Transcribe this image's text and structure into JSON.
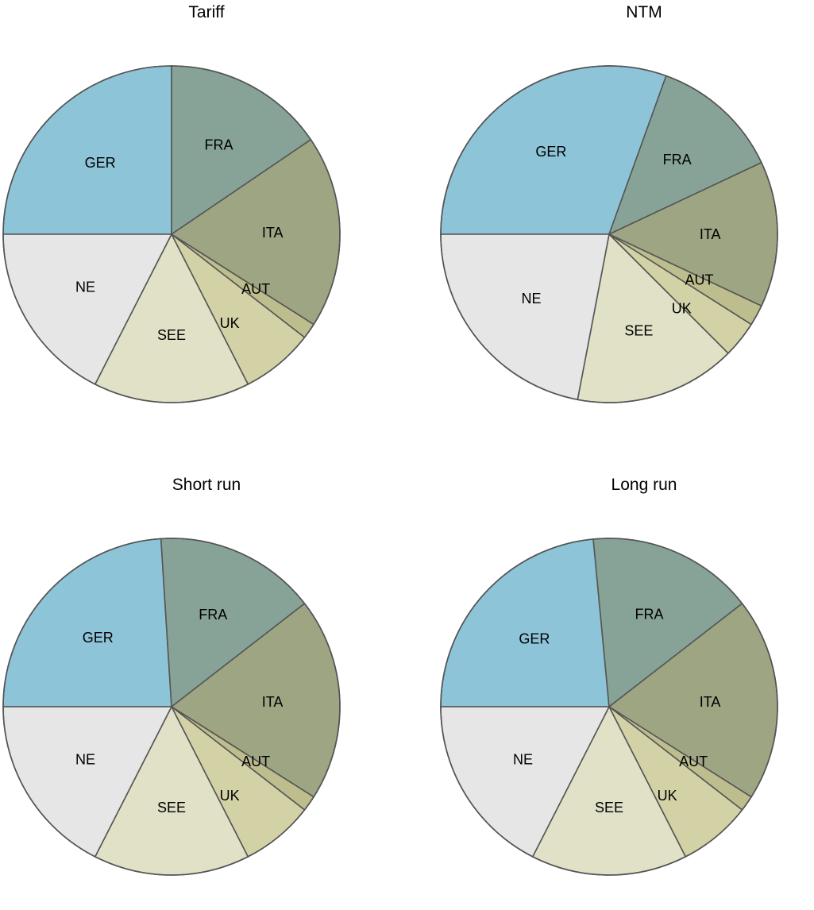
{
  "chart_data": [
    {
      "type": "pie",
      "title": "Tariff",
      "labels": [
        "GER",
        "FRA",
        "ITA",
        "AUT",
        "UK",
        "SEE",
        "NE"
      ],
      "values": [
        25.0,
        15.5,
        18.5,
        1.5,
        7.0,
        15.0,
        17.5
      ]
    },
    {
      "type": "pie",
      "title": "NTM",
      "labels": [
        "GER",
        "FRA",
        "ITA",
        "AUT",
        "UK",
        "SEE",
        "NE"
      ],
      "values": [
        30.5,
        12.5,
        14.0,
        2.0,
        3.5,
        15.5,
        22.0
      ]
    },
    {
      "type": "pie",
      "title": "Short run",
      "labels": [
        "GER",
        "FRA",
        "ITA",
        "AUT",
        "UK",
        "SEE",
        "NE"
      ],
      "values": [
        24.0,
        15.5,
        19.5,
        1.5,
        7.0,
        15.0,
        17.5
      ]
    },
    {
      "type": "pie",
      "title": "Long run",
      "labels": [
        "GER",
        "FRA",
        "ITA",
        "AUT",
        "UK",
        "SEE",
        "NE"
      ],
      "values": [
        23.5,
        16.0,
        19.5,
        1.5,
        7.0,
        15.0,
        17.5
      ]
    }
  ],
  "colors": {
    "GER": "#8ec4d8",
    "FRA": "#87a398",
    "ITA": "#9ea583",
    "AUT": "#bdbd8e",
    "UK": "#d3d2a7",
    "SEE": "#e1e1c7",
    "NE": "#e6e6e6",
    "outline": "#555555"
  }
}
